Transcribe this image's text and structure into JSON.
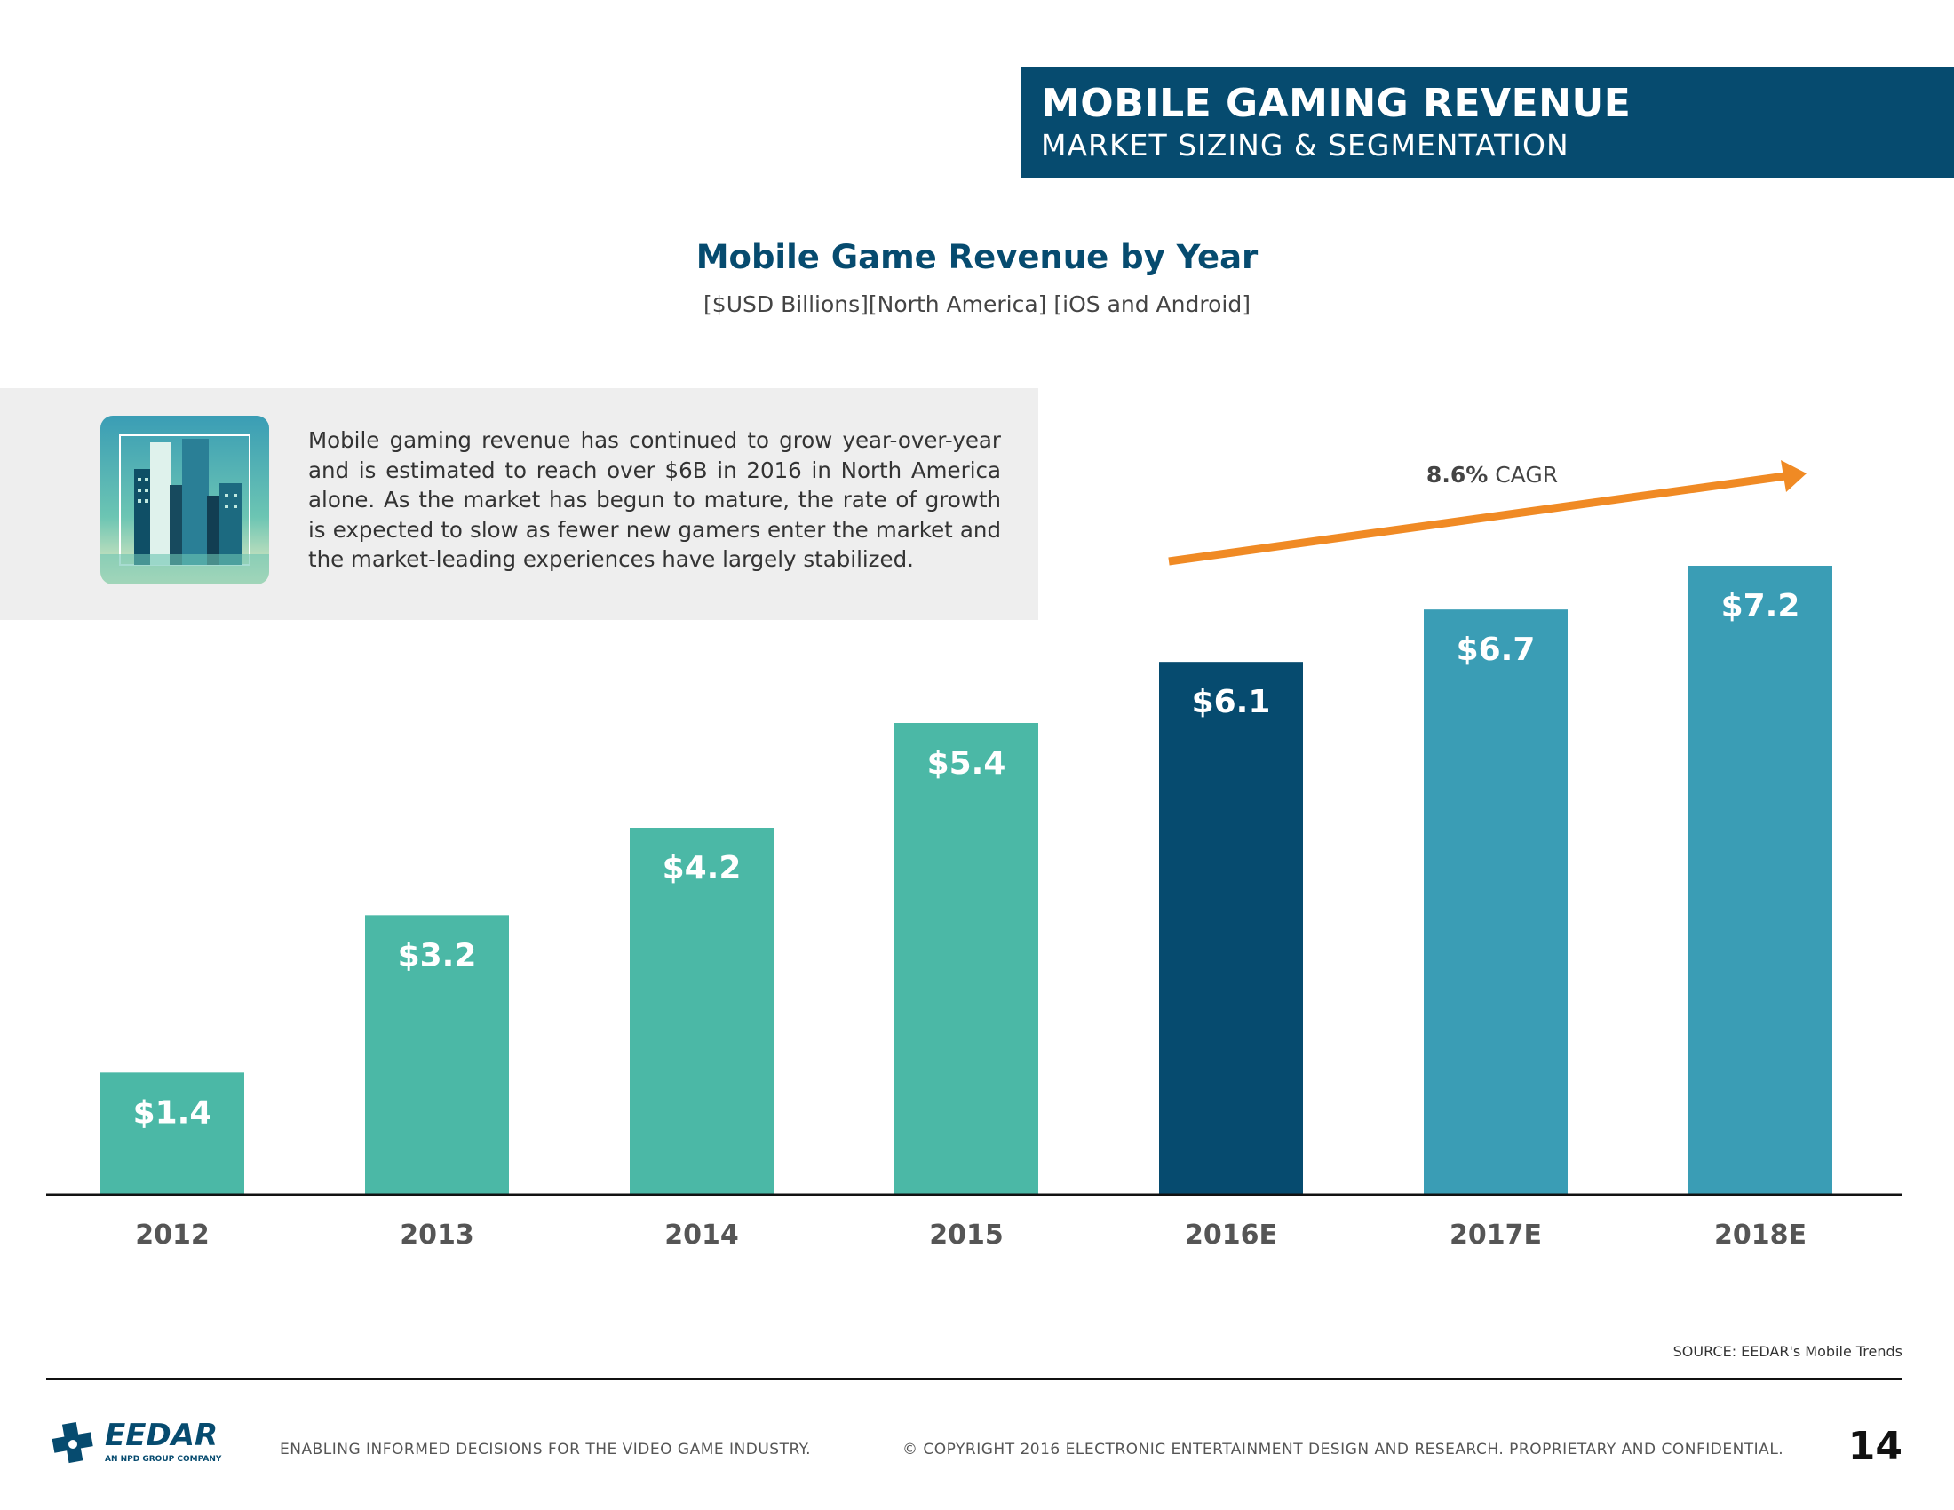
{
  "header": {
    "title": "MOBILE GAMING REVENUE",
    "subtitle": "MARKET SIZING & SEGMENTATION",
    "bg_color": "#064b6f"
  },
  "info": {
    "icon": "city-skyline-icon",
    "text": "Mobile gaming revenue has continued to grow year-over-year and is estimated to reach over $6B in 2016 in North America alone. As the market has begun to mature, the rate of growth is expected to slow as fewer new gamers enter the market and the market-leading experiences have largely stabilized."
  },
  "chart_data": {
    "type": "bar",
    "title": "Mobile Game Revenue by Year",
    "subtitle": "[$USD Billions][North America] [iOS and Android]",
    "categories": [
      "2012",
      "2013",
      "2014",
      "2015",
      "2016E",
      "2017E",
      "2018E"
    ],
    "values": [
      1.4,
      3.2,
      4.2,
      5.4,
      6.1,
      6.7,
      7.2
    ],
    "labels": [
      "$1.4",
      "$3.2",
      "$4.2",
      "$5.4",
      "$6.1",
      "$6.7",
      "$7.2"
    ],
    "bar_colors": [
      "#4bb8a6",
      "#4bb8a6",
      "#4bb8a6",
      "#4bb8a6",
      "#064b6f",
      "#3a9db5",
      "#3a9db5"
    ],
    "ylim": [
      0,
      7.2
    ],
    "xlabel": "",
    "ylabel": "",
    "grid": false,
    "annotation": {
      "bold": "8.6%",
      "text": " CAGR",
      "arrow_color": "#f08a24"
    }
  },
  "footer": {
    "source": "SOURCE: EEDAR's Mobile Trends",
    "logo_text": "EEDAR",
    "logo_sub": "AN NPD GROUP COMPANY",
    "tagline": "ENABLING INFORMED DECISIONS FOR THE  VIDEO GAME INDUSTRY.",
    "copyright": "© COPYRIGHT 2016 ELECTRONIC ENTERTAINMENT DESIGN AND RESEARCH. PROPRIETARY AND CONFIDENTIAL.",
    "page_number": "14"
  }
}
